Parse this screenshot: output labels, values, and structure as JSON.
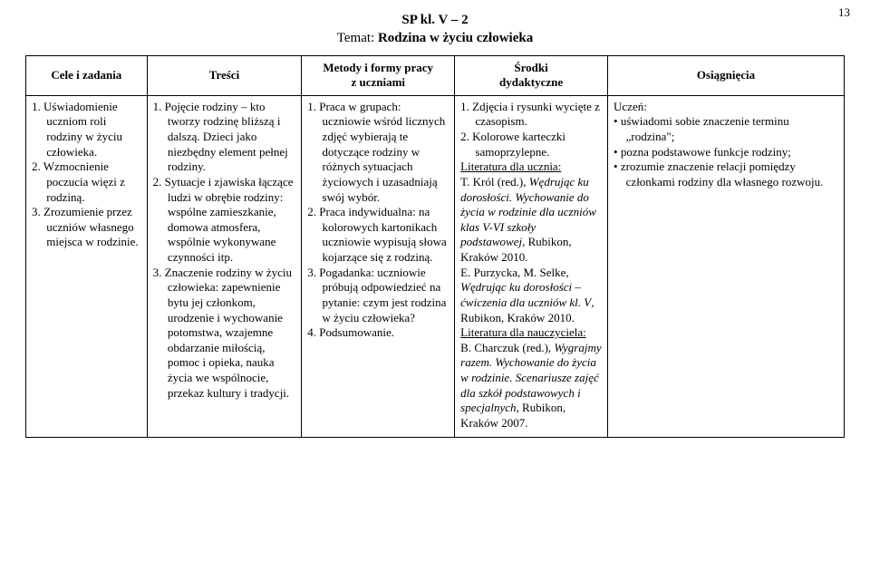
{
  "page_number": "13",
  "header": {
    "line1": "SP kl. V – 2",
    "label": "Temat: ",
    "topic": "Rodzina w życiu człowieka"
  },
  "columns": {
    "cele": "Cele i zadania",
    "tresci": "Treści",
    "metody_l1": "Metody i formy pracy",
    "metody_l2": "z uczniami",
    "srodki_l1": "Środki",
    "srodki_l2": "dydaktyczne",
    "osiag": "Osiągnięcia"
  },
  "cele": [
    "1. Uświadomienie uczniom roli rodziny w życiu człowieka.",
    "2. Wzmocnienie poczucia więzi z rodziną.",
    "3. Zrozumienie przez uczniów własnego miejsca w rodzinie."
  ],
  "tresci": [
    "1. Pojęcie rodziny – kto tworzy rodzinę bliższą i dalszą. Dzieci jako niezbędny element pełnej rodziny.",
    "2. Sytuacje i zjawiska łączące ludzi w obrębie rodziny: wspólne zamieszkanie, domowa atmosfera, wspólnie wykonywane czynności itp.",
    "3. Znaczenie rodziny w życiu człowieka: zapewnienie bytu jej członkom, urodzenie i wychowanie potomstwa, wzajemne obdarzanie miłością, pomoc i opieka, nauka życia we wspólnocie, przekaz kultury i tradycji."
  ],
  "metody": [
    "1. Praca w grupach: uczniowie wśród licznych zdjęć wybierają te dotyczące rodziny w różnych sytuacjach życiowych i uzasadniają swój wybór.",
    "2. Praca indywidualna: na kolorowych kartonikach uczniowie wypisują słowa kojarzące się z rodziną.",
    "3. Pogadanka: uczniowie próbują odpowiedzieć na pytanie: czym jest rodzina w życiu człowieka?",
    "4. Podsumowanie."
  ],
  "srodki": {
    "list": [
      "1. Zdjęcia i rysunki wycięte z czasopism.",
      "2. Kolorowe karteczki samoprzylepne."
    ],
    "lit_u_label": "Literatura dla ucznia:",
    "lit_u_1a": "T. Król (red.), ",
    "lit_u_1b": "Wędrując ku dorosłości. Wychowanie do życia w rodzinie dla uczniów klas V-VI szkoły podstawowej",
    "lit_u_1c": ", Rubikon, Kraków 2010.",
    "lit_u_2a": "E. Purzycka, M. Selke, ",
    "lit_u_2b": "Wędrując ku dorosłości – ćwiczenia dla uczniów kl. V",
    "lit_u_2c": ", Rubikon, Kraków 2010.",
    "lit_n_label": "Literatura dla nauczyciela:",
    "lit_n_1a": "B. Charczuk (red.), ",
    "lit_n_1b": "Wygrajmy razem. Wychowanie do życia w rodzinie. Scenariusze zajęć dla szkół podstawowych i specjalnych",
    "lit_n_1c": ", Rubikon, Kraków 2007."
  },
  "osiag": {
    "lead": "Uczeń:",
    "items": [
      "uświadomi sobie znaczenie terminu „rodzina\";",
      "pozna podstawowe funkcje rodziny;",
      "zrozumie znaczenie relacji pomiędzy członkami rodziny dla własnego rozwoju."
    ]
  }
}
